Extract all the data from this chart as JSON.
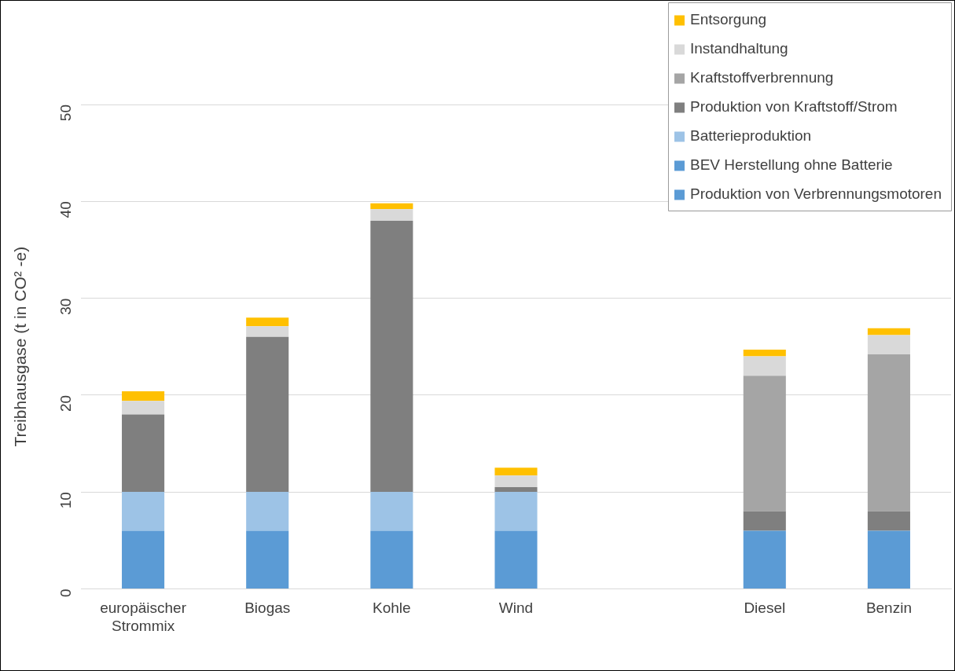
{
  "chart_data": {
    "type": "bar",
    "stacked": true,
    "ylabel": "Treibhausgase (t in CO² -e)",
    "categories": [
      "europäischer Strommix",
      "Biogas",
      "Kohle",
      "Wind",
      null,
      "Diesel",
      "Benzin"
    ],
    "series": [
      {
        "name": "Produktion von Verbrennungsmotoren",
        "color": "#5b9bd5",
        "values": [
          null,
          null,
          null,
          null,
          null,
          6,
          6
        ]
      },
      {
        "name": "BEV Herstellung ohne Batterie",
        "color": "#5b9bd5",
        "values": [
          6,
          6,
          6,
          6,
          null,
          null,
          null
        ]
      },
      {
        "name": "Batterieproduktion",
        "color": "#9dc3e6",
        "values": [
          4,
          4,
          4,
          4,
          null,
          null,
          null
        ]
      },
      {
        "name": "Produktion von Kraftstoff/Strom",
        "color": "#7f7f7f",
        "values": [
          8,
          16,
          28,
          0.5,
          null,
          2,
          2
        ]
      },
      {
        "name": "Kraftstoffverbrennung",
        "color": "#a5a5a5",
        "values": [
          null,
          null,
          null,
          null,
          null,
          14,
          16.2
        ]
      },
      {
        "name": "Instandhaltung",
        "color": "#d9d9d9",
        "values": [
          1.4,
          1.1,
          1.2,
          1.2,
          null,
          2,
          2
        ]
      },
      {
        "name": "Entsorgung",
        "color": "#ffc000",
        "values": [
          1,
          0.9,
          0.6,
          0.8,
          null,
          0.7,
          0.7
        ]
      }
    ],
    "ylim": [
      0,
      50
    ],
    "yticks": [
      0,
      10,
      20,
      30,
      40,
      50
    ],
    "grid": "y",
    "legend": "top right"
  }
}
